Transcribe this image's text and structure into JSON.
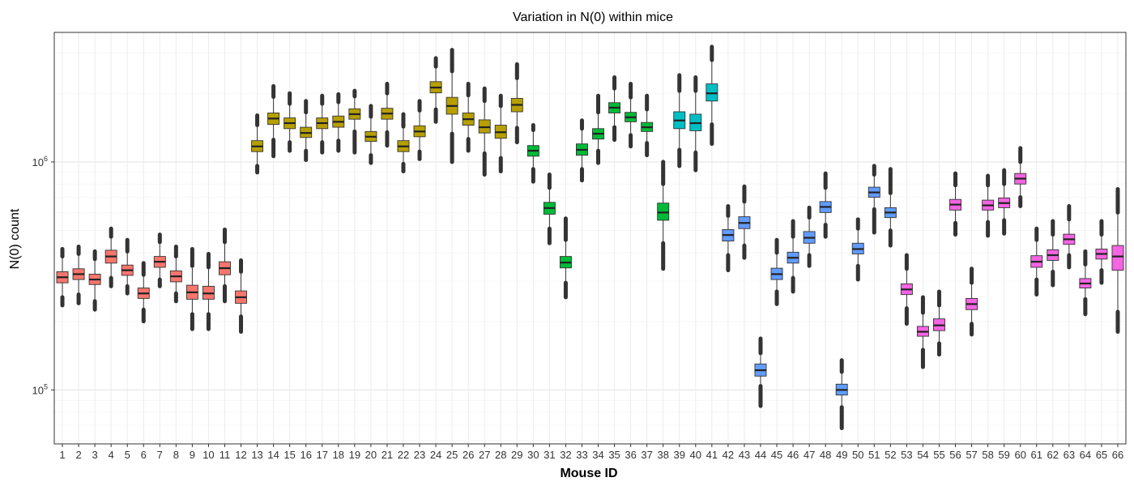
{
  "chart_data": {
    "type": "boxplot",
    "title": "Variation in  N(0)  within mice",
    "xlabel": "Mouse ID",
    "ylabel": "N(0) count",
    "yscale": "log10",
    "ylim": [
      58000,
      3700000
    ],
    "y_tick_labels": [
      {
        "base": "10",
        "exp": "5",
        "value": 100000
      },
      {
        "base": "10",
        "exp": "6",
        "value": 1000000
      }
    ],
    "grid": true,
    "legend": "none",
    "group_colors": [
      "#F8766D",
      "#B79F00",
      "#00BA38",
      "#00BFC4",
      "#619CFF",
      "#F564E3"
    ],
    "boxes": [
      {
        "id": "1",
        "group": 0,
        "min": 255000,
        "q1": 295000,
        "median": 312000,
        "q3": 330000,
        "max": 385000,
        "outlier_low": 235000,
        "outlier_high": 415000
      },
      {
        "id": "2",
        "group": 0,
        "min": 262000,
        "q1": 305000,
        "median": 322000,
        "q3": 340000,
        "max": 395000,
        "outlier_low": 240000,
        "outlier_high": 425000
      },
      {
        "id": "3",
        "group": 0,
        "min": 245000,
        "q1": 290000,
        "median": 305000,
        "q3": 322000,
        "max": 375000,
        "outlier_low": 225000,
        "outlier_high": 405000
      },
      {
        "id": "4",
        "group": 0,
        "min": 310000,
        "q1": 360000,
        "median": 385000,
        "q3": 410000,
        "max": 470000,
        "outlier_low": 285000,
        "outlier_high": 510000
      },
      {
        "id": "5",
        "group": 0,
        "min": 285000,
        "q1": 318000,
        "median": 335000,
        "q3": 353000,
        "max": 405000,
        "outlier_low": 265000,
        "outlier_high": 455000
      },
      {
        "id": "6",
        "group": 0,
        "min": 225000,
        "q1": 252000,
        "median": 265000,
        "q3": 280000,
        "max": 320000,
        "outlier_low": 200000,
        "outlier_high": 360000
      },
      {
        "id": "7",
        "group": 0,
        "min": 305000,
        "q1": 345000,
        "median": 365000,
        "q3": 385000,
        "max": 445000,
        "outlier_low": 285000,
        "outlier_high": 480000
      },
      {
        "id": "8",
        "group": 0,
        "min": 265000,
        "q1": 298000,
        "median": 315000,
        "q3": 333000,
        "max": 385000,
        "outlier_low": 245000,
        "outlier_high": 425000
      },
      {
        "id": "9",
        "group": 0,
        "min": 215000,
        "q1": 250000,
        "median": 268000,
        "q3": 288000,
        "max": 350000,
        "outlier_low": 185000,
        "outlier_high": 415000
      },
      {
        "id": "10",
        "group": 0,
        "min": 215000,
        "q1": 250000,
        "median": 265000,
        "q3": 285000,
        "max": 345000,
        "outlier_low": 185000,
        "outlier_high": 395000
      },
      {
        "id": "11",
        "group": 0,
        "min": 285000,
        "q1": 320000,
        "median": 342000,
        "q3": 365000,
        "max": 445000,
        "outlier_low": 245000,
        "outlier_high": 505000
      },
      {
        "id": "12",
        "group": 0,
        "min": 210000,
        "q1": 240000,
        "median": 255000,
        "q3": 272000,
        "max": 330000,
        "outlier_low": 180000,
        "outlier_high": 370000
      },
      {
        "id": "13",
        "group": 1,
        "min": 960000,
        "q1": 1110000,
        "median": 1170000,
        "q3": 1240000,
        "max": 1450000,
        "outlier_low": 900000,
        "outlier_high": 1600000
      },
      {
        "id": "14",
        "group": 1,
        "min": 1250000,
        "q1": 1460000,
        "median": 1550000,
        "q3": 1640000,
        "max": 1930000,
        "outlier_low": 1060000,
        "outlier_high": 2150000
      },
      {
        "id": "15",
        "group": 1,
        "min": 1220000,
        "q1": 1400000,
        "median": 1480000,
        "q3": 1560000,
        "max": 1800000,
        "outlier_low": 1120000,
        "outlier_high": 2000000
      },
      {
        "id": "16",
        "group": 1,
        "min": 1120000,
        "q1": 1280000,
        "median": 1340000,
        "q3": 1420000,
        "max": 1650000,
        "outlier_low": 1020000,
        "outlier_high": 1850000
      },
      {
        "id": "17",
        "group": 1,
        "min": 1220000,
        "q1": 1400000,
        "median": 1480000,
        "q3": 1560000,
        "max": 1800000,
        "outlier_low": 1100000,
        "outlier_high": 1950000
      },
      {
        "id": "18",
        "group": 1,
        "min": 1240000,
        "q1": 1420000,
        "median": 1500000,
        "q3": 1590000,
        "max": 1830000,
        "outlier_low": 1120000,
        "outlier_high": 1980000
      },
      {
        "id": "19",
        "group": 1,
        "min": 1360000,
        "q1": 1540000,
        "median": 1620000,
        "q3": 1710000,
        "max": 1940000,
        "outlier_low": 1100000,
        "outlier_high": 2050000
      },
      {
        "id": "20",
        "group": 1,
        "min": 1070000,
        "q1": 1230000,
        "median": 1290000,
        "q3": 1360000,
        "max": 1580000,
        "outlier_low": 990000,
        "outlier_high": 1760000
      },
      {
        "id": "21",
        "group": 1,
        "min": 1350000,
        "q1": 1540000,
        "median": 1630000,
        "q3": 1720000,
        "max": 2000000,
        "outlier_low": 1180000,
        "outlier_high": 2200000
      },
      {
        "id": "22",
        "group": 1,
        "min": 980000,
        "q1": 1110000,
        "median": 1170000,
        "q3": 1240000,
        "max": 1430000,
        "outlier_low": 910000,
        "outlier_high": 1620000
      },
      {
        "id": "23",
        "group": 1,
        "min": 1110000,
        "q1": 1290000,
        "median": 1360000,
        "q3": 1440000,
        "max": 1680000,
        "outlier_low": 1030000,
        "outlier_high": 1850000
      },
      {
        "id": "24",
        "group": 1,
        "min": 1700000,
        "q1": 2010000,
        "median": 2120000,
        "q3": 2250000,
        "max": 2620000,
        "outlier_low": 1500000,
        "outlier_high": 2850000
      },
      {
        "id": "25",
        "group": 1,
        "min": 1330000,
        "q1": 1620000,
        "median": 1760000,
        "q3": 1920000,
        "max": 2500000,
        "outlier_low": 1000000,
        "outlier_high": 3100000
      },
      {
        "id": "26",
        "group": 1,
        "min": 1260000,
        "q1": 1450000,
        "median": 1540000,
        "q3": 1640000,
        "max": 1960000,
        "outlier_low": 1120000,
        "outlier_high": 2200000
      },
      {
        "id": "27",
        "group": 1,
        "min": 1090000,
        "q1": 1340000,
        "median": 1420000,
        "q3": 1530000,
        "max": 1850000,
        "outlier_low": 880000,
        "outlier_high": 2100000
      },
      {
        "id": "28",
        "group": 1,
        "min": 1040000,
        "q1": 1270000,
        "median": 1350000,
        "q3": 1450000,
        "max": 1760000,
        "outlier_low": 910000,
        "outlier_high": 1950000
      },
      {
        "id": "29",
        "group": 1,
        "min": 1410000,
        "q1": 1660000,
        "median": 1780000,
        "q3": 1900000,
        "max": 2330000,
        "outlier_low": 1220000,
        "outlier_high": 2680000
      },
      {
        "id": "30",
        "group": 2,
        "min": 930000,
        "q1": 1060000,
        "median": 1120000,
        "q3": 1180000,
        "max": 1380000,
        "outlier_low": 820000,
        "outlier_high": 1450000
      },
      {
        "id": "31",
        "group": 2,
        "min": 510000,
        "q1": 590000,
        "median": 628000,
        "q3": 665000,
        "max": 770000,
        "outlier_low": 440000,
        "outlier_high": 880000
      },
      {
        "id": "32",
        "group": 2,
        "min": 295000,
        "q1": 343000,
        "median": 362000,
        "q3": 385000,
        "max": 455000,
        "outlier_low": 255000,
        "outlier_high": 565000
      },
      {
        "id": "33",
        "group": 2,
        "min": 930000,
        "q1": 1070000,
        "median": 1130000,
        "q3": 1200000,
        "max": 1400000,
        "outlier_low": 830000,
        "outlier_high": 1520000
      },
      {
        "id": "34",
        "group": 2,
        "min": 1120000,
        "q1": 1260000,
        "median": 1330000,
        "q3": 1400000,
        "max": 1650000,
        "outlier_low": 990000,
        "outlier_high": 1950000
      },
      {
        "id": "35",
        "group": 2,
        "min": 1420000,
        "q1": 1640000,
        "median": 1730000,
        "q3": 1820000,
        "max": 2100000,
        "outlier_low": 1250000,
        "outlier_high": 2350000
      },
      {
        "id": "36",
        "group": 2,
        "min": 1310000,
        "q1": 1500000,
        "median": 1570000,
        "q3": 1650000,
        "max": 1920000,
        "outlier_low": 1170000,
        "outlier_high": 2200000
      },
      {
        "id": "37",
        "group": 2,
        "min": 1210000,
        "q1": 1360000,
        "median": 1420000,
        "q3": 1490000,
        "max": 1700000,
        "outlier_low": 1070000,
        "outlier_high": 1950000
      },
      {
        "id": "38",
        "group": 2,
        "min": 440000,
        "q1": 555000,
        "median": 600000,
        "q3": 660000,
        "max": 800000,
        "outlier_low": 340000,
        "outlier_high": 1000000
      },
      {
        "id": "39",
        "group": 3,
        "min": 1130000,
        "q1": 1400000,
        "median": 1520000,
        "q3": 1660000,
        "max": 2050000,
        "outlier_low": 960000,
        "outlier_high": 2400000
      },
      {
        "id": "40",
        "group": 3,
        "min": 1100000,
        "q1": 1370000,
        "median": 1480000,
        "q3": 1620000,
        "max": 2050000,
        "outlier_low": 920000,
        "outlier_high": 2350000
      },
      {
        "id": "41",
        "group": 3,
        "min": 1460000,
        "q1": 1850000,
        "median": 2000000,
        "q3": 2200000,
        "max": 2800000,
        "outlier_low": 1200000,
        "outlier_high": 3200000
      },
      {
        "id": "42",
        "group": 4,
        "min": 390000,
        "q1": 450000,
        "median": 478000,
        "q3": 505000,
        "max": 580000,
        "outlier_low": 335000,
        "outlier_high": 640000
      },
      {
        "id": "43",
        "group": 4,
        "min": 430000,
        "q1": 510000,
        "median": 540000,
        "q3": 575000,
        "max": 670000,
        "outlier_low": 380000,
        "outlier_high": 780000
      },
      {
        "id": "44",
        "group": 4,
        "min": 104000,
        "q1": 115000,
        "median": 122000,
        "q3": 130000,
        "max": 145000,
        "outlier_low": 85000,
        "outlier_high": 168000
      },
      {
        "id": "45",
        "group": 4,
        "min": 270000,
        "q1": 305000,
        "median": 322000,
        "q3": 342000,
        "max": 400000,
        "outlier_low": 238000,
        "outlier_high": 455000
      },
      {
        "id": "46",
        "group": 4,
        "min": 310000,
        "q1": 360000,
        "median": 380000,
        "q3": 402000,
        "max": 470000,
        "outlier_low": 270000,
        "outlier_high": 550000
      },
      {
        "id": "47",
        "group": 4,
        "min": 390000,
        "q1": 440000,
        "median": 465000,
        "q3": 495000,
        "max": 570000,
        "outlier_low": 350000,
        "outlier_high": 630000
      },
      {
        "id": "48",
        "group": 4,
        "min": 530000,
        "q1": 600000,
        "median": 635000,
        "q3": 670000,
        "max": 770000,
        "outlier_low": 470000,
        "outlier_high": 890000
      },
      {
        "id": "49",
        "group": 4,
        "min": 84000,
        "q1": 95000,
        "median": 100000,
        "q3": 106000,
        "max": 120000,
        "outlier_low": 68000,
        "outlier_high": 135000
      },
      {
        "id": "50",
        "group": 4,
        "min": 350000,
        "q1": 395000,
        "median": 415000,
        "q3": 440000,
        "max": 510000,
        "outlier_low": 305000,
        "outlier_high": 560000
      },
      {
        "id": "51",
        "group": 4,
        "min": 620000,
        "q1": 700000,
        "median": 735000,
        "q3": 775000,
        "max": 880000,
        "outlier_low": 490000,
        "outlier_high": 960000
      },
      {
        "id": "52",
        "group": 4,
        "min": 500000,
        "q1": 570000,
        "median": 600000,
        "q3": 630000,
        "max": 730000,
        "outlier_low": 430000,
        "outlier_high": 930000
      },
      {
        "id": "53",
        "group": 5,
        "min": 228000,
        "q1": 262000,
        "median": 276000,
        "q3": 292000,
        "max": 340000,
        "outlier_low": 195000,
        "outlier_high": 390000
      },
      {
        "id": "54",
        "group": 5,
        "min": 150000,
        "q1": 172000,
        "median": 180000,
        "q3": 190000,
        "max": 218000,
        "outlier_low": 126000,
        "outlier_high": 255000
      },
      {
        "id": "55",
        "group": 5,
        "min": 160000,
        "q1": 182000,
        "median": 192000,
        "q3": 205000,
        "max": 235000,
        "outlier_low": 143000,
        "outlier_high": 270000
      },
      {
        "id": "56",
        "group": 5,
        "min": 540000,
        "q1": 615000,
        "median": 650000,
        "q3": 685000,
        "max": 790000,
        "outlier_low": 480000,
        "outlier_high": 890000
      },
      {
        "id": "57",
        "group": 5,
        "min": 195000,
        "q1": 225000,
        "median": 238000,
        "q3": 252000,
        "max": 295000,
        "outlier_low": 175000,
        "outlier_high": 340000
      },
      {
        "id": "58",
        "group": 5,
        "min": 545000,
        "q1": 615000,
        "median": 645000,
        "q3": 680000,
        "max": 790000,
        "outlier_low": 475000,
        "outlier_high": 870000
      },
      {
        "id": "59",
        "group": 5,
        "min": 555000,
        "q1": 630000,
        "median": 660000,
        "q3": 695000,
        "max": 800000,
        "outlier_low": 485000,
        "outlier_high": 920000
      },
      {
        "id": "60",
        "group": 5,
        "min": 700000,
        "q1": 800000,
        "median": 845000,
        "q3": 890000,
        "max": 1000000,
        "outlier_low": 640000,
        "outlier_high": 1150000
      },
      {
        "id": "61",
        "group": 5,
        "min": 305000,
        "q1": 345000,
        "median": 365000,
        "q3": 388000,
        "max": 455000,
        "outlier_low": 262000,
        "outlier_high": 510000
      },
      {
        "id": "62",
        "group": 5,
        "min": 330000,
        "q1": 370000,
        "median": 390000,
        "q3": 412000,
        "max": 480000,
        "outlier_low": 288000,
        "outlier_high": 550000
      },
      {
        "id": "63",
        "group": 5,
        "min": 390000,
        "q1": 435000,
        "median": 458000,
        "q3": 482000,
        "max": 560000,
        "outlier_low": 345000,
        "outlier_high": 640000
      },
      {
        "id": "64",
        "group": 5,
        "min": 250000,
        "q1": 280000,
        "median": 293000,
        "q3": 308000,
        "max": 355000,
        "outlier_low": 215000,
        "outlier_high": 405000
      },
      {
        "id": "65",
        "group": 5,
        "min": 335000,
        "q1": 375000,
        "median": 395000,
        "q3": 415000,
        "max": 480000,
        "outlier_low": 295000,
        "outlier_high": 550000
      },
      {
        "id": "66",
        "group": 5,
        "min": 220000,
        "q1": 335000,
        "median": 385000,
        "q3": 430000,
        "max": 600000,
        "outlier_low": 180000,
        "outlier_high": 760000
      }
    ]
  }
}
